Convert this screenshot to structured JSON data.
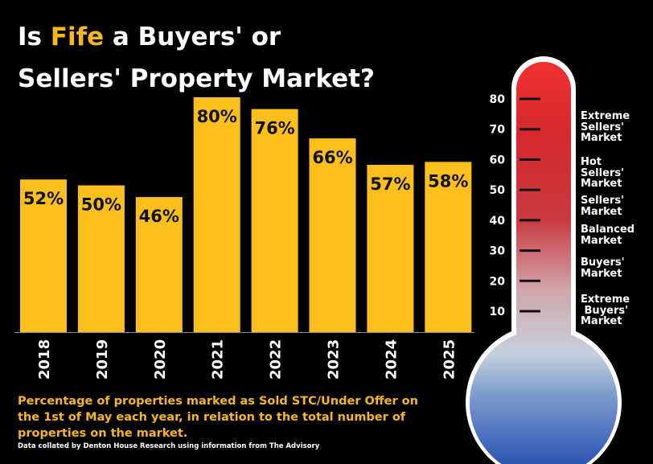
{
  "title": {
    "line1_pre": "Is ",
    "line1_highlight": "Fife",
    "line1_post": " a Buyers' or",
    "line2": "Sellers' Property Market?"
  },
  "caption": "Percentage of properties marked as Sold STC/Under Offer on the 1st of May each year, in relation to the total number of properties on the market.",
  "source": "Data collated by Denton House Research using information from The Advisory",
  "colors": {
    "bar": "#fcbf1c",
    "highlight": "#f7b71e",
    "background": "#000000",
    "therm_top": "#e8282e",
    "therm_mid": "#c8d3e2",
    "therm_bottom": "#1e4fae"
  },
  "chart_data": {
    "type": "bar",
    "categories": [
      "2018",
      "2019",
      "2020",
      "2021",
      "2022",
      "2023",
      "2024",
      "2025"
    ],
    "values": [
      52,
      50,
      46,
      80,
      76,
      66,
      57,
      58
    ],
    "labels": [
      "52%",
      "50%",
      "46%",
      "80%",
      "76%",
      "66%",
      "57%",
      "58%"
    ],
    "unit": "%",
    "ylim": [
      0,
      80
    ]
  },
  "thermometer": {
    "ticks": [
      {
        "value": 80,
        "label": "80"
      },
      {
        "value": 70,
        "label": "70"
      },
      {
        "value": 60,
        "label": "60"
      },
      {
        "value": 50,
        "label": "50"
      },
      {
        "value": 40,
        "label": "40"
      },
      {
        "value": 30,
        "label": "30"
      },
      {
        "value": 20,
        "label": "20"
      },
      {
        "value": 10,
        "label": "10"
      }
    ],
    "zones": [
      {
        "label": "Extreme Sellers' Market",
        "lines": [
          "Extreme",
          "Sellers'",
          "Market"
        ]
      },
      {
        "label": "Hot Sellers' Market",
        "lines": [
          "Hot",
          "Sellers'",
          "Market"
        ]
      },
      {
        "label": "Sellers' Market",
        "lines": [
          "Sellers'",
          "Market"
        ]
      },
      {
        "label": "Balanced Market",
        "lines": [
          "Balanced",
          "Market"
        ]
      },
      {
        "label": "Buyers' Market",
        "lines": [
          "Buyers'",
          "Market"
        ]
      },
      {
        "label": "Extreme Buyers' Market",
        "lines": [
          "Extreme",
          " Buyers'",
          "Market"
        ]
      }
    ]
  }
}
